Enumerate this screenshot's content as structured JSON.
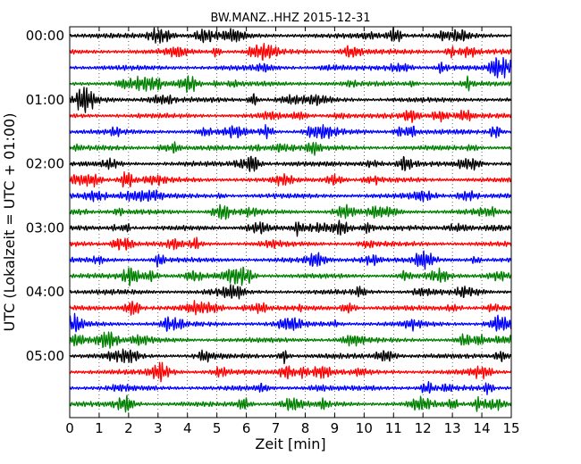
{
  "chart_data": {
    "type": "line",
    "title": "BW.MANZ..HHZ 2015-12-31",
    "xlabel": "Zeit  [min]",
    "ylabel": "UTC (Lokalzeit = UTC + 01:00)",
    "xlim": [
      0,
      15
    ],
    "x_ticks": [
      "0",
      "1",
      "2",
      "3",
      "4",
      "5",
      "6",
      "7",
      "8",
      "9",
      "10",
      "11",
      "12",
      "13",
      "14",
      "15"
    ],
    "y_ticks": [
      "00:00",
      "01:00",
      "02:00",
      "03:00",
      "04:00",
      "05:00"
    ],
    "trace_count": 24,
    "trace_interval_minutes": 15,
    "trace_colors": [
      "#000000",
      "#ff0000",
      "#0000ff",
      "#008000"
    ],
    "grid": "vertical dotted at each minute"
  }
}
